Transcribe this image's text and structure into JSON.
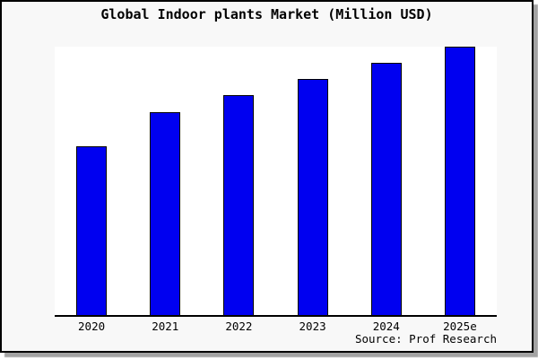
{
  "window": {
    "background_color": "#f8f8f8",
    "frame_border_color": "#000000",
    "shadow_color": "#a3a3a3"
  },
  "chart_data": {
    "type": "bar",
    "title": "Global Indoor plants Market (Million USD)",
    "categories": [
      "2020",
      "2021",
      "2022",
      "2023",
      "2024",
      "2025e"
    ],
    "values": [
      63,
      75.5,
      82,
      88,
      94,
      100
    ],
    "value_scale": "relative height index; no y-axis ticks or labels are shown, 2025e (tallest bar) = 100 and nearly fills plot height",
    "xlabel": "",
    "ylabel": "",
    "grid": false,
    "legend": false,
    "bar_color": "#0000f0",
    "bar_border_color": "#000000",
    "plot_background": "#ffffff",
    "axis_color": "#000000",
    "source": "Source: Prof Research"
  }
}
